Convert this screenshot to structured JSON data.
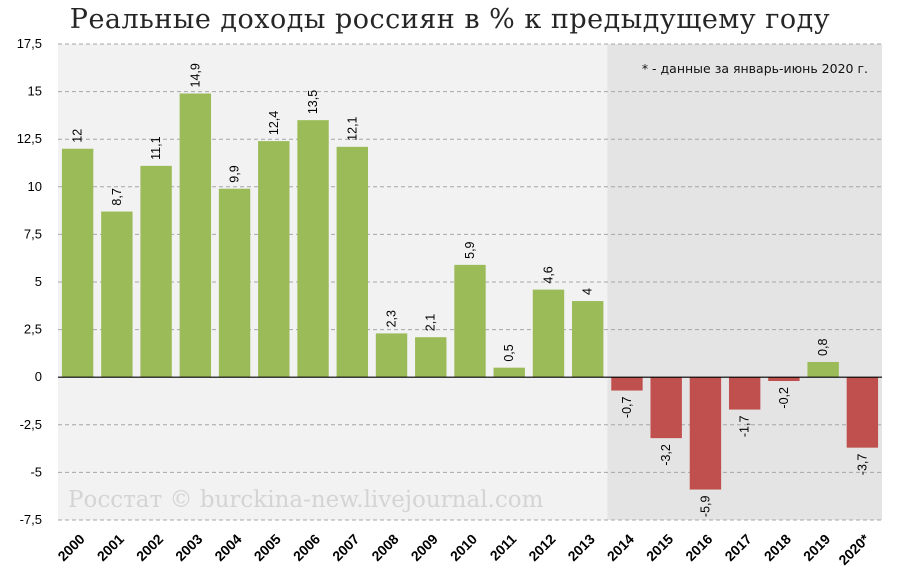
{
  "chart_data": {
    "type": "bar",
    "title": "Реальные доходы россиян в % к предыдущему году",
    "categories": [
      "2000",
      "2001",
      "2002",
      "2003",
      "2004",
      "2005",
      "2006",
      "2007",
      "2008",
      "2009",
      "2010",
      "2011",
      "2012",
      "2013",
      "2014",
      "2015",
      "2016",
      "2017",
      "2018",
      "2019",
      "2020*"
    ],
    "values": [
      12,
      8.7,
      11.1,
      14.9,
      9.9,
      12.4,
      13.5,
      12.1,
      2.3,
      2.1,
      5.9,
      0.5,
      4.6,
      4,
      -0.7,
      -3.2,
      -5.9,
      -1.7,
      -0.2,
      0.8,
      -3.7
    ],
    "value_labels": [
      "12",
      "8,7",
      "11,1",
      "14,9",
      "9,9",
      "12,4",
      "13,5",
      "12,1",
      "2,3",
      "2,1",
      "5,9",
      "0,5",
      "4,6",
      "4",
      "-0,7",
      "-3,2",
      "-5,9",
      "-1,7",
      "-0,2",
      "0,8",
      "-3,7"
    ],
    "ylim": [
      -7.5,
      17.5
    ],
    "yticks": [
      17.5,
      15,
      12.5,
      10,
      7.5,
      5,
      2.5,
      0,
      -2.5,
      -5,
      -7.5
    ],
    "ytick_labels": [
      "17,5",
      "15",
      "12,5",
      "10",
      "7,5",
      "5",
      "2,5",
      "0",
      "-2,5",
      "-5",
      "-7,5"
    ],
    "xlabel": "",
    "ylabel": "",
    "grid": true,
    "annotation": "* - данные за январь-июнь 2020 г.",
    "watermark": "Росстат © burckina-new.livejournal.com",
    "shaded_region_from": "2014",
    "colors": {
      "positive": "#9bbb59",
      "negative": "#c0504d",
      "region_light": "#f2f2f2",
      "region_dark": "#e4e4e4",
      "grid": "#a6a6a6"
    }
  }
}
